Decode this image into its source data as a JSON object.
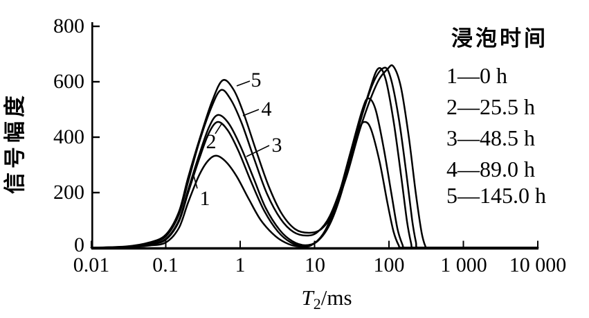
{
  "chart_data": {
    "type": "line",
    "x_scale": "log",
    "xlim": [
      0.01,
      10000
    ],
    "ylim": [
      0,
      800
    ],
    "grid": false,
    "axis_color": "#000000",
    "curve_color": "#000000",
    "xlabel": {
      "main": "T",
      "sub": "2",
      "unit": "/ms"
    },
    "ylabel": "信号幅度",
    "x_ticks": [
      {
        "v": 0.01,
        "label": "0.01"
      },
      {
        "v": 0.1,
        "label": "0.1"
      },
      {
        "v": 1,
        "label": "1"
      },
      {
        "v": 10,
        "label": "10"
      },
      {
        "v": 100,
        "label": "100"
      },
      {
        "v": 1000,
        "label": "1 000"
      },
      {
        "v": 10000,
        "label": "10 000"
      }
    ],
    "y_ticks": [
      {
        "v": 0,
        "label": "0"
      },
      {
        "v": 200,
        "label": "200"
      },
      {
        "v": 400,
        "label": "400"
      },
      {
        "v": 600,
        "label": "600"
      },
      {
        "v": 800,
        "label": "800"
      }
    ],
    "series": [
      {
        "name": "1",
        "soak_time": "0 h",
        "points": [
          [
            0.01,
            0
          ],
          [
            0.03,
            3
          ],
          [
            0.06,
            9
          ],
          [
            0.1,
            20
          ],
          [
            0.15,
            72
          ],
          [
            0.2,
            165
          ],
          [
            0.28,
            262
          ],
          [
            0.37,
            315
          ],
          [
            0.48,
            333
          ],
          [
            0.65,
            310
          ],
          [
            0.9,
            258
          ],
          [
            1.3,
            178
          ],
          [
            1.9,
            100
          ],
          [
            3,
            42
          ],
          [
            4.5,
            14
          ],
          [
            6.5,
            5
          ],
          [
            9,
            10
          ],
          [
            13,
            48
          ],
          [
            19,
            140
          ],
          [
            28,
            300
          ],
          [
            40,
            430
          ],
          [
            48,
            455
          ],
          [
            58,
            425
          ],
          [
            75,
            310
          ],
          [
            95,
            165
          ],
          [
            115,
            60
          ],
          [
            135,
            10
          ],
          [
            148,
            0
          ],
          [
            300,
            0
          ],
          [
            1000,
            0
          ],
          [
            10000,
            0
          ]
        ]
      },
      {
        "name": "2",
        "soak_time": "25.5 h",
        "points": [
          [
            0.01,
            0
          ],
          [
            0.03,
            4
          ],
          [
            0.06,
            13
          ],
          [
            0.1,
            30
          ],
          [
            0.15,
            95
          ],
          [
            0.2,
            200
          ],
          [
            0.28,
            320
          ],
          [
            0.38,
            415
          ],
          [
            0.5,
            455
          ],
          [
            0.68,
            425
          ],
          [
            0.95,
            350
          ],
          [
            1.4,
            240
          ],
          [
            2.1,
            135
          ],
          [
            3.2,
            60
          ],
          [
            4.8,
            20
          ],
          [
            7,
            8
          ],
          [
            10,
            18
          ],
          [
            14,
            65
          ],
          [
            20,
            170
          ],
          [
            30,
            340
          ],
          [
            44,
            500
          ],
          [
            53,
            540
          ],
          [
            66,
            500
          ],
          [
            85,
            360
          ],
          [
            108,
            195
          ],
          [
            130,
            70
          ],
          [
            152,
            12
          ],
          [
            165,
            0
          ],
          [
            300,
            0
          ],
          [
            1000,
            0
          ],
          [
            10000,
            0
          ]
        ]
      },
      {
        "name": "3",
        "soak_time": "48.5 h",
        "points": [
          [
            0.01,
            0
          ],
          [
            0.03,
            4
          ],
          [
            0.06,
            14
          ],
          [
            0.1,
            33
          ],
          [
            0.15,
            100
          ],
          [
            0.2,
            210
          ],
          [
            0.28,
            335
          ],
          [
            0.38,
            435
          ],
          [
            0.5,
            480
          ],
          [
            0.7,
            450
          ],
          [
            1.0,
            370
          ],
          [
            1.5,
            255
          ],
          [
            2.2,
            145
          ],
          [
            3.4,
            65
          ],
          [
            5,
            25
          ],
          [
            7.5,
            10
          ],
          [
            11,
            25
          ],
          [
            16,
            85
          ],
          [
            23,
            200
          ],
          [
            35,
            390
          ],
          [
            55,
            570
          ],
          [
            72,
            648
          ],
          [
            90,
            610
          ],
          [
            115,
            460
          ],
          [
            145,
            265
          ],
          [
            175,
            95
          ],
          [
            198,
            18
          ],
          [
            210,
            0
          ],
          [
            300,
            0
          ],
          [
            1000,
            0
          ],
          [
            10000,
            0
          ]
        ]
      },
      {
        "name": "4",
        "soak_time": "89.0 h",
        "points": [
          [
            0.01,
            0
          ],
          [
            0.03,
            5
          ],
          [
            0.06,
            18
          ],
          [
            0.1,
            42
          ],
          [
            0.15,
            120
          ],
          [
            0.2,
            240
          ],
          [
            0.28,
            380
          ],
          [
            0.4,
            500
          ],
          [
            0.55,
            570
          ],
          [
            0.75,
            535
          ],
          [
            1.05,
            450
          ],
          [
            1.55,
            320
          ],
          [
            2.3,
            195
          ],
          [
            3.5,
            105
          ],
          [
            5.2,
            58
          ],
          [
            7.8,
            45
          ],
          [
            11,
            58
          ],
          [
            16,
            115
          ],
          [
            24,
            240
          ],
          [
            38,
            430
          ],
          [
            60,
            590
          ],
          [
            85,
            650
          ],
          [
            105,
            615
          ],
          [
            135,
            470
          ],
          [
            170,
            275
          ],
          [
            205,
            100
          ],
          [
            230,
            22
          ],
          [
            245,
            0
          ],
          [
            400,
            0
          ],
          [
            1000,
            0
          ],
          [
            10000,
            0
          ]
        ]
      },
      {
        "name": "5",
        "soak_time": "145.0 h",
        "points": [
          [
            0.01,
            0
          ],
          [
            0.03,
            6
          ],
          [
            0.06,
            20
          ],
          [
            0.1,
            48
          ],
          [
            0.15,
            130
          ],
          [
            0.2,
            255
          ],
          [
            0.29,
            400
          ],
          [
            0.42,
            530
          ],
          [
            0.58,
            605
          ],
          [
            0.8,
            575
          ],
          [
            1.1,
            490
          ],
          [
            1.6,
            360
          ],
          [
            2.4,
            225
          ],
          [
            3.6,
            125
          ],
          [
            5.5,
            68
          ],
          [
            8.5,
            55
          ],
          [
            12.5,
            70
          ],
          [
            18,
            130
          ],
          [
            27,
            260
          ],
          [
            42,
            440
          ],
          [
            68,
            590
          ],
          [
            95,
            645
          ],
          [
            115,
            655
          ],
          [
            145,
            580
          ],
          [
            185,
            400
          ],
          [
            230,
            195
          ],
          [
            275,
            55
          ],
          [
            310,
            5
          ],
          [
            330,
            0
          ],
          [
            1000,
            0
          ],
          [
            10000,
            0
          ]
        ]
      }
    ],
    "annotations": [
      {
        "label": "1",
        "leader": [
          285,
          272,
          280,
          254
        ]
      },
      {
        "label": "2",
        "leader": [
          311,
          193,
          320,
          179
        ]
      },
      {
        "label": "3",
        "leader": [
          389,
          210,
          356,
          226
        ]
      },
      {
        "label": "4",
        "leader": [
          374,
          158,
          351,
          167
        ]
      },
      {
        "label": "5",
        "leader": [
          361,
          117,
          342,
          124
        ]
      }
    ]
  },
  "legend": {
    "title": "浸泡时间",
    "items": [
      "1—0 h",
      "2—25.5 h",
      "3—48.5 h",
      "4—89.0 h",
      "5—145.0 h"
    ]
  }
}
